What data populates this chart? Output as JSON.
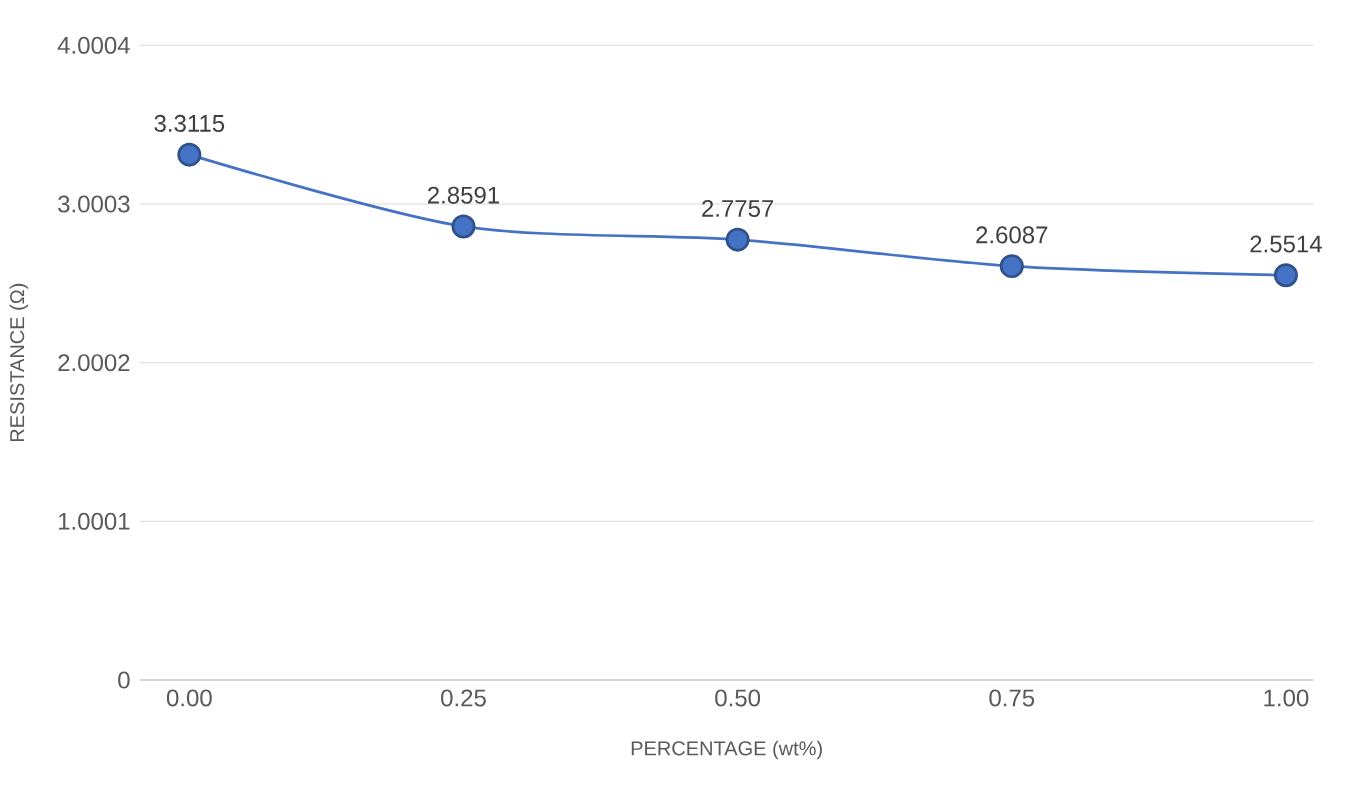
{
  "chart_data": {
    "type": "line",
    "xlabel": "PERCENTAGE (wt%)",
    "ylabel": "RESISTANCE (Ω)",
    "x": [
      0,
      0.25,
      0.5,
      0.75,
      1
    ],
    "series": [
      {
        "color": "#4472c4",
        "values": [
          3.3115,
          2.8591,
          2.7757,
          2.6087,
          2.5514
        ]
      }
    ],
    "xlim": [
      -0.045,
      1.025
    ],
    "ylim": [
      0,
      4.0004
    ],
    "xticks": [
      {
        "value": 0,
        "label": "0.00"
      },
      {
        "value": 0.25,
        "label": "0.25"
      },
      {
        "value": 0.5,
        "label": "0.50"
      },
      {
        "value": 0.75,
        "label": "0.75"
      },
      {
        "value": 1,
        "label": "1.00"
      }
    ],
    "yticks": [
      0,
      1.0001,
      2.0002,
      3.0003,
      4.0004
    ],
    "grid": "y",
    "marker": "circle",
    "data_labels": true
  }
}
